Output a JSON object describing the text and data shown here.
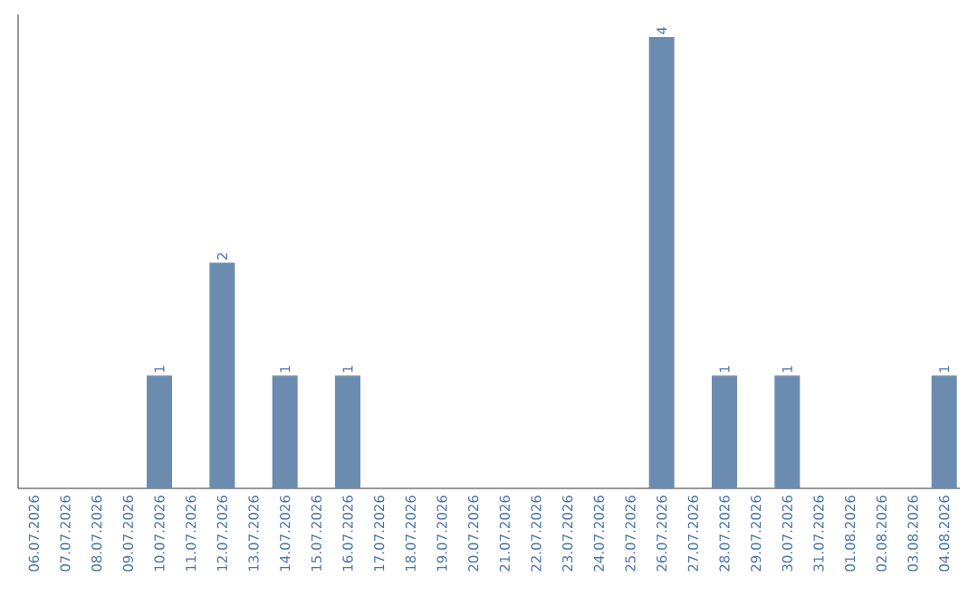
{
  "chart_data": {
    "type": "bar",
    "categories": [
      "06.07.2026",
      "07.07.2026",
      "08.07.2026",
      "09.07.2026",
      "10.07.2026",
      "11.07.2026",
      "12.07.2026",
      "13.07.2026",
      "14.07.2026",
      "15.07.2026",
      "16.07.2026",
      "17.07.2026",
      "18.07.2026",
      "19.07.2026",
      "20.07.2026",
      "21.07.2026",
      "22.07.2026",
      "23.07.2026",
      "24.07.2026",
      "25.07.2026",
      "26.07.2026",
      "27.07.2026",
      "28.07.2026",
      "29.07.2026",
      "30.07.2026",
      "31.07.2026",
      "01.08.2026",
      "02.08.2026",
      "03.08.2026",
      "04.08.2026"
    ],
    "values": [
      0,
      0,
      0,
      0,
      1,
      0,
      2,
      0,
      1,
      0,
      1,
      0,
      0,
      0,
      0,
      0,
      0,
      0,
      0,
      0,
      4,
      0,
      1,
      0,
      1,
      0,
      0,
      0,
      0,
      1
    ],
    "value_labels": [
      null,
      null,
      null,
      null,
      "1",
      null,
      "2",
      null,
      "1",
      null,
      "1",
      null,
      null,
      null,
      null,
      null,
      null,
      null,
      null,
      null,
      "4",
      null,
      "1",
      null,
      "1",
      null,
      null,
      null,
      null,
      "1"
    ],
    "color": "#6b8cae",
    "tick_labels": "x",
    "grid": false
  }
}
